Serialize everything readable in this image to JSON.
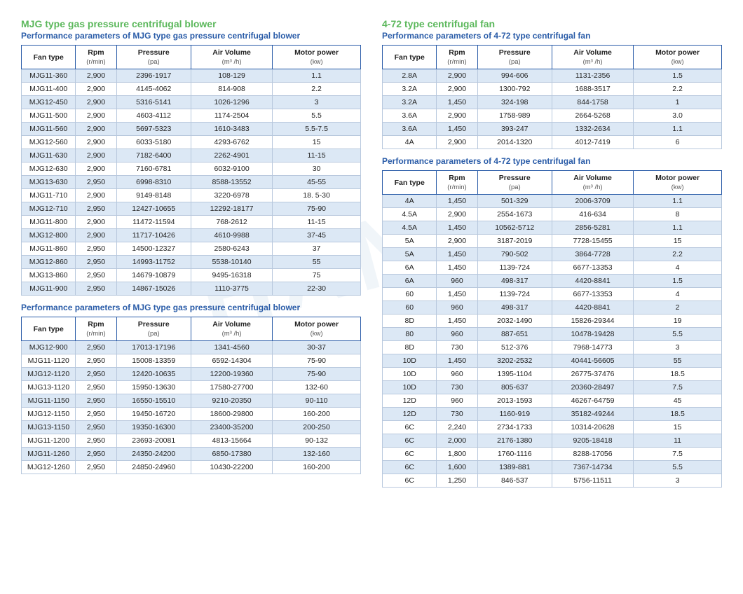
{
  "colors": {
    "section_title": "#5cb85c",
    "subtitle": "#2a5ca8",
    "border": "#2a5ca8",
    "cell_border": "#b8c8dd",
    "row_odd": "#dce8f5",
    "row_even": "#ffffff"
  },
  "watermark": "HANQI",
  "columns": {
    "fan_type": "Fan type",
    "rpm": "Rpm",
    "rpm_unit": "(r/min)",
    "pressure": "Pressure",
    "pressure_unit": "(pa)",
    "air_volume": "Air Volume",
    "air_volume_unit": "(m³ /h)",
    "motor_power": "Motor power",
    "motor_power_unit": "(kw)"
  },
  "left": {
    "title": "MJG type gas pressure centrifugal blower",
    "sub1": "Performance parameters of MJG type gas pressure centrifugal blower",
    "sub2": "Performance parameters of MJG type gas pressure centrifugal blower",
    "table1": [
      [
        "MJG11-360",
        "2,900",
        "2396-1917",
        "108-129",
        "1.1"
      ],
      [
        "MJG11-400",
        "2,900",
        "4145-4062",
        "814-908",
        "2.2"
      ],
      [
        "MJG12-450",
        "2,900",
        "5316-5141",
        "1026-1296",
        "3"
      ],
      [
        "MJG11-500",
        "2,900",
        "4603-4112",
        "1174-2504",
        "5.5"
      ],
      [
        "MJG11-560",
        "2,900",
        "5697-5323",
        "1610-3483",
        "5.5-7.5"
      ],
      [
        "MJG12-560",
        "2,900",
        "6033-5180",
        "4293-6762",
        "15"
      ],
      [
        "MJG11-630",
        "2,900",
        "7182-6400",
        "2262-4901",
        "11-15"
      ],
      [
        "MJG12-630",
        "2,900",
        "7160-6781",
        "6032-9100",
        "30"
      ],
      [
        "MJG13-630",
        "2,950",
        "6998-8310",
        "8588-13552",
        "45-55"
      ],
      [
        "MJG11-710",
        "2,900",
        "9149-8148",
        "3220-6978",
        "18. 5-30"
      ],
      [
        "MJG12-710",
        "2,950",
        "12427-10655",
        "12292-18177",
        "75-90"
      ],
      [
        "MJG11-800",
        "2,900",
        "11472-11594",
        "768-2612",
        "11-15"
      ],
      [
        "MJG12-800",
        "2,900",
        "11717-10426",
        "4610-9988",
        "37-45"
      ],
      [
        "MJG11-860",
        "2,950",
        "14500-12327",
        "2580-6243",
        "37"
      ],
      [
        "MJG12-860",
        "2,950",
        "14993-11752",
        "5538-10140",
        "55"
      ],
      [
        "MJG13-860",
        "2,950",
        "14679-10879",
        "9495-16318",
        "75"
      ],
      [
        "MJG11-900",
        "2,950",
        "14867-15026",
        "1110-3775",
        "22-30"
      ]
    ],
    "table2": [
      [
        "MJG12-900",
        "2,950",
        "17013-17196",
        "1341-4560",
        "30-37"
      ],
      [
        "MJG11-1120",
        "2,950",
        "15008-13359",
        "6592-14304",
        "75-90"
      ],
      [
        "MJG12-1120",
        "2,950",
        "12420-10635",
        "12200-19360",
        "75-90"
      ],
      [
        "MJG13-1120",
        "2,950",
        "15950-13630",
        "17580-27700",
        "132-60"
      ],
      [
        "MJG11-1150",
        "2,950",
        "16550-15510",
        "9210-20350",
        "90-110"
      ],
      [
        "MJG12-1150",
        "2,950",
        "19450-16720",
        "18600-29800",
        "160-200"
      ],
      [
        "MJG13-1150",
        "2,950",
        "19350-16300",
        "23400-35200",
        "200-250"
      ],
      [
        "MJG11-1200",
        "2,950",
        "23693-20081",
        "4813-15664",
        "90-132"
      ],
      [
        "MJG11-1260",
        "2,950",
        "24350-24200",
        "6850-17380",
        "132-160"
      ],
      [
        "MJG12-1260",
        "2,950",
        "24850-24960",
        "10430-22200",
        "160-200"
      ]
    ]
  },
  "right": {
    "title": "4-72 type centrifugal fan",
    "sub1": "Performance parameters of 4-72 type centrifugal fan",
    "sub2": "Performance parameters of 4-72 type centrifugal fan",
    "table1": [
      [
        "2.8A",
        "2,900",
        "994-606",
        "1131-2356",
        "1.5"
      ],
      [
        "3.2A",
        "2,900",
        "1300-792",
        "1688-3517",
        "2.2"
      ],
      [
        "3.2A",
        "1,450",
        "324-198",
        "844-1758",
        "1"
      ],
      [
        "3.6A",
        "2,900",
        "1758-989",
        "2664-5268",
        "3.0"
      ],
      [
        "3.6A",
        "1,450",
        "393-247",
        "1332-2634",
        "1.1"
      ],
      [
        "4A",
        "2,900",
        "2014-1320",
        "4012-7419",
        "6"
      ]
    ],
    "table2": [
      [
        "4A",
        "1,450",
        "501-329",
        "2006-3709",
        "1.1"
      ],
      [
        "4.5A",
        "2,900",
        "2554-1673",
        "416-634",
        "8"
      ],
      [
        "4.5A",
        "1,450",
        "10562-5712",
        "2856-5281",
        "1.1"
      ],
      [
        "5A",
        "2,900",
        "3187-2019",
        "7728-15455",
        "15"
      ],
      [
        "5A",
        "1,450",
        "790-502",
        "3864-7728",
        "2.2"
      ],
      [
        "6A",
        "1,450",
        "1139-724",
        "6677-13353",
        "4"
      ],
      [
        "6A",
        "960",
        "498-317",
        "4420-8841",
        "1.5"
      ],
      [
        "60",
        "1,450",
        "1139-724",
        "6677-13353",
        "4"
      ],
      [
        "60",
        "960",
        "498-317",
        "4420-8841",
        "2"
      ],
      [
        "8D",
        "1,450",
        "2032-1490",
        "15826-29344",
        "19"
      ],
      [
        "80",
        "960",
        "887-651",
        "10478-19428",
        "5.5"
      ],
      [
        "8D",
        "730",
        "512-376",
        "7968-14773",
        "3"
      ],
      [
        "10D",
        "1,450",
        "3202-2532",
        "40441-56605",
        "55"
      ],
      [
        "10D",
        "960",
        "1395-1104",
        "26775-37476",
        "18.5"
      ],
      [
        "10D",
        "730",
        "805-637",
        "20360-28497",
        "7.5"
      ],
      [
        "12D",
        "960",
        "2013-1593",
        "46267-64759",
        "45"
      ],
      [
        "12D",
        "730",
        "1160-919",
        "35182-49244",
        "18.5"
      ],
      [
        "6C",
        "2,240",
        "2734-1733",
        "10314-20628",
        "15"
      ],
      [
        "6C",
        "2,000",
        "2176-1380",
        "9205-18418",
        "11"
      ],
      [
        "6C",
        "1,800",
        "1760-1116",
        "8288-17056",
        "7.5"
      ],
      [
        "6C",
        "1,600",
        "1389-881",
        "7367-14734",
        "5.5"
      ],
      [
        "6C",
        "1,250",
        "846-537",
        "5756-11511",
        "3"
      ]
    ]
  }
}
